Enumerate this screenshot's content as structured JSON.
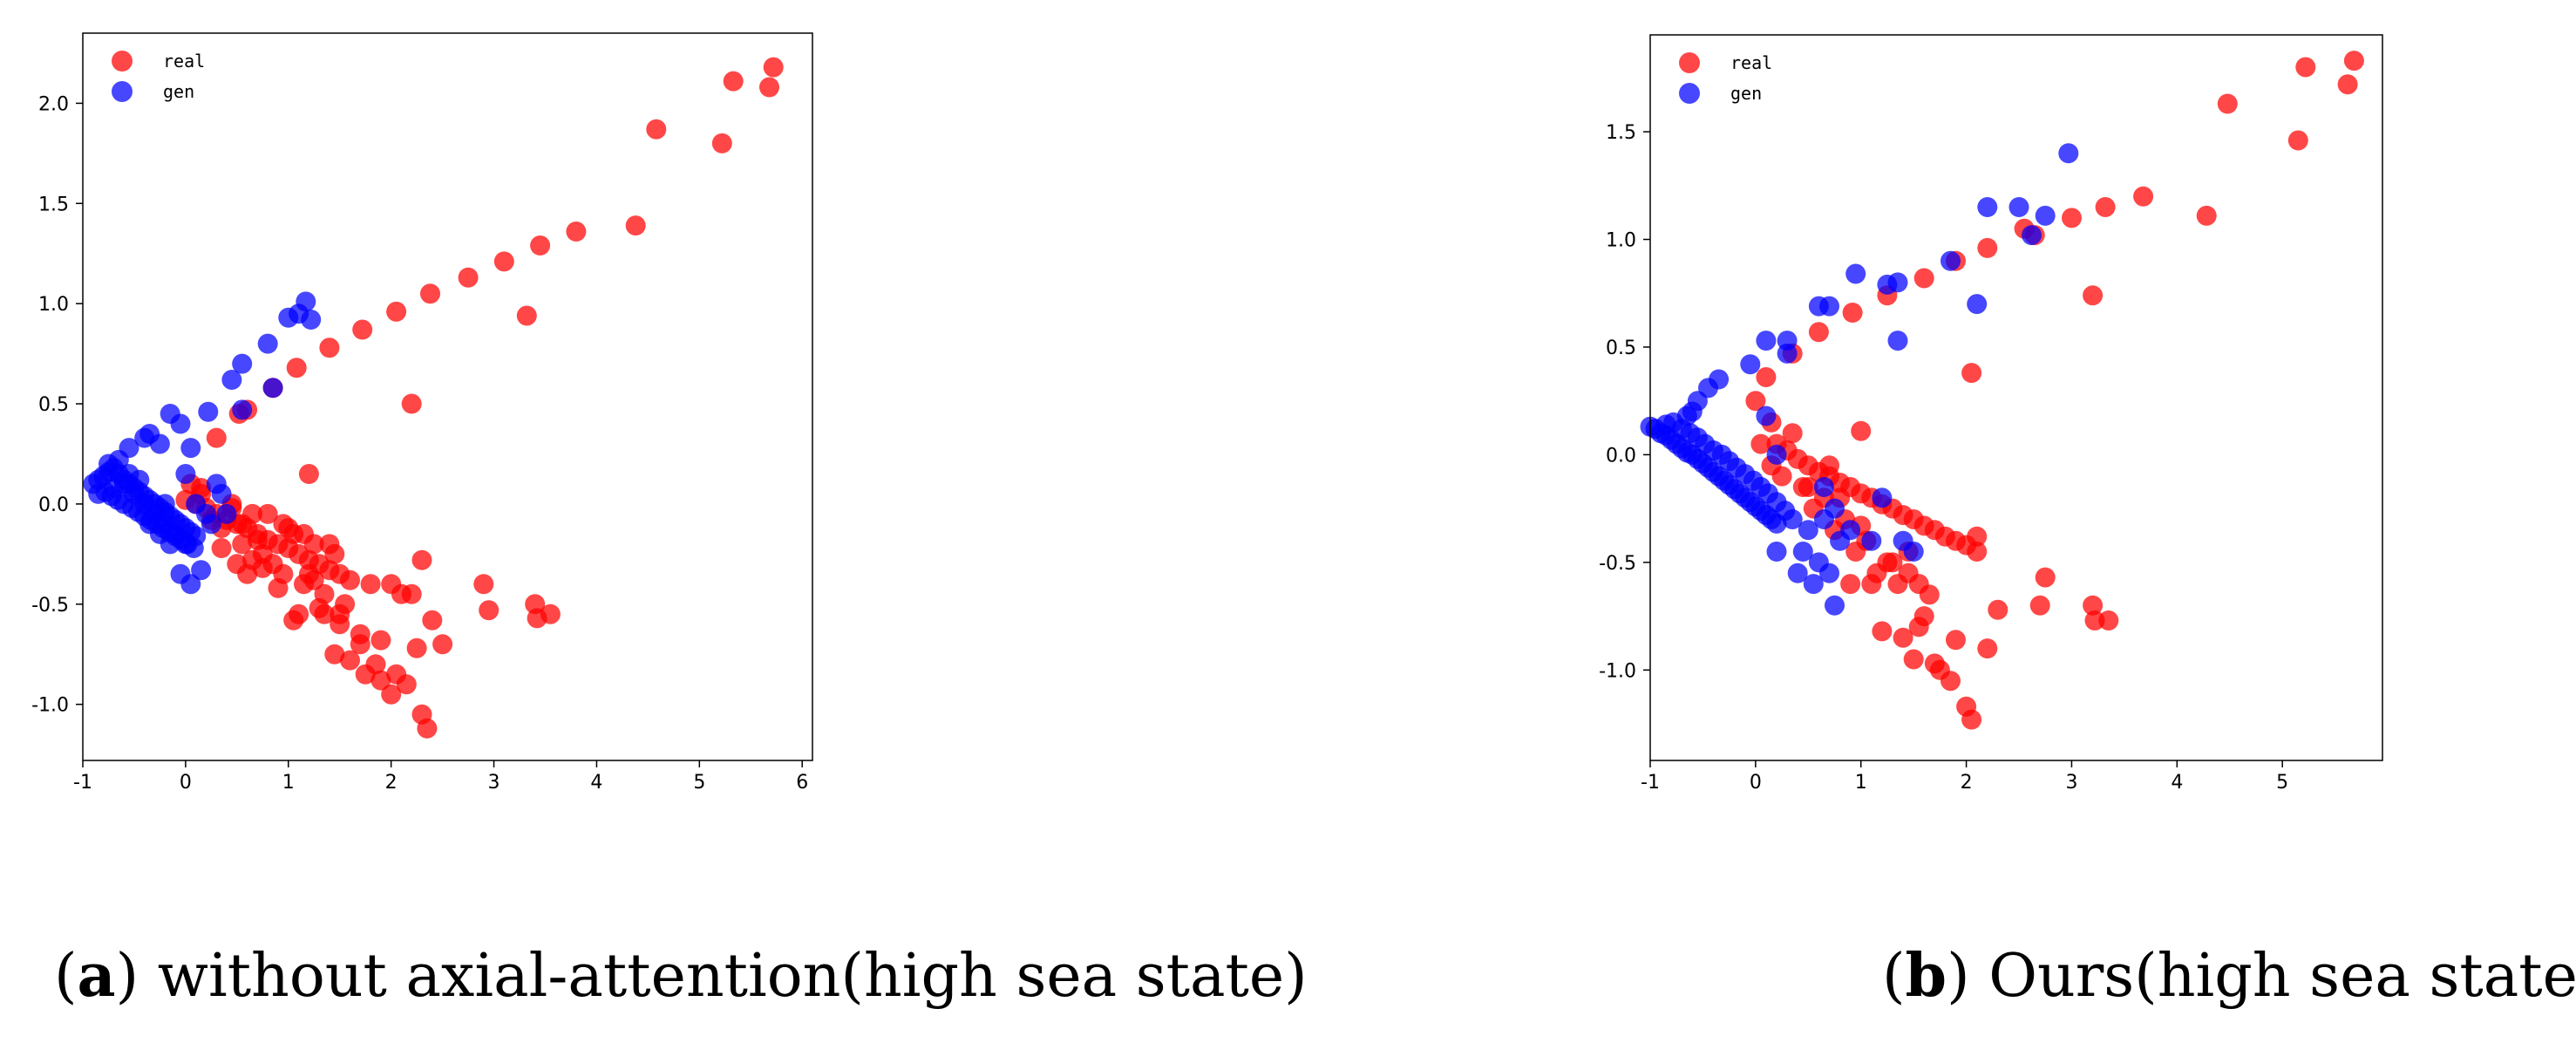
{
  "captions": [
    {
      "letter": "a",
      "text": ") without axial-attention(high sea state)"
    },
    {
      "letter": "b",
      "text": ") Ours(high sea state)"
    }
  ],
  "chart_data": [
    {
      "type": "scatter",
      "title": "",
      "xlabel": "",
      "ylabel": "",
      "xlim": [
        -1.0,
        6.1
      ],
      "ylim": [
        -1.28,
        2.35
      ],
      "xticks": [
        "-1",
        "0",
        "1",
        "2",
        "3",
        "4",
        "5",
        "6"
      ],
      "yticks": [
        "-1.0",
        "-0.5",
        "0.0",
        "0.5",
        "1.0",
        "1.5",
        "2.0"
      ],
      "grid": false,
      "legend_position": "top-left",
      "series": [
        {
          "name": "real",
          "color": "#ff0000",
          "x": [
            5.72,
            5.68,
            5.33,
            5.22,
            4.58,
            4.38,
            3.8,
            3.45,
            3.32,
            3.1,
            2.75,
            2.38,
            2.05,
            1.72,
            1.4,
            1.08,
            0.85,
            0.6,
            0.52,
            0.3,
            2.2,
            1.2,
            0.0,
            0.1,
            0.2,
            0.3,
            0.4,
            0.5,
            0.6,
            0.7,
            0.8,
            0.9,
            1.0,
            1.1,
            1.2,
            1.3,
            1.4,
            1.5,
            1.6,
            1.8,
            2.0,
            2.1,
            0.15,
            0.35,
            0.45,
            0.55,
            0.65,
            0.75,
            0.85,
            0.95,
            1.05,
            1.15,
            1.25,
            1.35,
            1.45,
            1.55,
            0.25,
            0.5,
            0.7,
            0.9,
            1.1,
            1.3,
            1.5,
            1.7,
            1.9,
            2.3,
            2.9,
            2.95,
            3.4,
            3.42,
            3.55,
            2.4,
            2.5,
            2.25,
            2.2,
            1.05,
            1.15,
            1.35,
            1.45,
            1.6,
            1.75,
            1.85,
            1.9,
            2.0,
            2.05,
            2.15,
            2.3,
            2.35,
            1.7,
            1.5,
            0.35,
            0.55,
            0.6,
            0.8,
            1.0,
            1.2,
            1.4,
            0.05,
            0.15,
            0.45,
            0.65,
            0.75,
            0.95,
            1.25
          ],
          "y": [
            2.18,
            2.08,
            2.11,
            1.8,
            1.87,
            1.39,
            1.36,
            1.29,
            0.94,
            1.21,
            1.13,
            1.05,
            0.96,
            0.87,
            0.78,
            0.68,
            0.58,
            0.47,
            0.45,
            0.33,
            0.5,
            0.15,
            0.02,
            0.0,
            -0.02,
            -0.05,
            -0.08,
            -0.1,
            -0.12,
            -0.15,
            -0.18,
            -0.2,
            -0.22,
            -0.25,
            -0.28,
            -0.3,
            -0.33,
            -0.35,
            -0.38,
            -0.4,
            -0.4,
            -0.45,
            0.05,
            -0.12,
            -0.02,
            -0.2,
            -0.05,
            -0.25,
            -0.3,
            -0.35,
            -0.15,
            -0.4,
            -0.2,
            -0.45,
            -0.25,
            -0.5,
            -0.08,
            -0.3,
            -0.18,
            -0.42,
            -0.55,
            -0.52,
            -0.55,
            -0.65,
            -0.68,
            -0.28,
            -0.4,
            -0.53,
            -0.5,
            -0.57,
            -0.55,
            -0.58,
            -0.7,
            -0.72,
            -0.45,
            -0.58,
            -0.15,
            -0.55,
            -0.75,
            -0.78,
            -0.85,
            -0.8,
            -0.88,
            -0.95,
            -0.85,
            -0.9,
            -1.05,
            -1.12,
            -0.7,
            -0.6,
            -0.22,
            -0.1,
            -0.35,
            -0.05,
            -0.12,
            -0.35,
            -0.2,
            0.1,
            0.08,
            0.0,
            -0.28,
            -0.32,
            -0.1,
            -0.38
          ]
        },
        {
          "name": "gen",
          "color": "#0000ff",
          "x": [
            1.17,
            1.22,
            1.0,
            1.1,
            0.8,
            0.55,
            0.85,
            0.45,
            0.55,
            0.22,
            -0.15,
            -0.35,
            -0.05,
            -0.25,
            -0.4,
            -0.55,
            0.05,
            0.3,
            0.0,
            -0.9,
            -0.85,
            -0.8,
            -0.75,
            -0.7,
            -0.65,
            -0.6,
            -0.55,
            -0.5,
            -0.45,
            -0.4,
            -0.35,
            -0.3,
            -0.25,
            -0.2,
            -0.15,
            -0.1,
            -0.05,
            0.0,
            0.05,
            0.1,
            -0.85,
            -0.78,
            -0.72,
            -0.66,
            -0.6,
            -0.52,
            -0.46,
            -0.4,
            -0.34,
            -0.28,
            -0.22,
            -0.16,
            -0.1,
            -0.04,
            0.02,
            0.08,
            -0.7,
            -0.6,
            -0.5,
            -0.4,
            -0.3,
            -0.2,
            -0.1,
            0.0,
            0.25,
            0.35,
            0.4,
            0.2,
            -0.05,
            0.05,
            -0.75,
            -0.65,
            -0.55,
            -0.45,
            -0.35,
            -0.25,
            -0.15,
            0.15,
            0.1,
            -0.2
          ],
          "y": [
            1.01,
            0.92,
            0.93,
            0.95,
            0.8,
            0.7,
            0.58,
            0.62,
            0.47,
            0.46,
            0.45,
            0.35,
            0.4,
            0.3,
            0.33,
            0.28,
            0.28,
            0.1,
            0.15,
            0.1,
            0.12,
            0.14,
            0.16,
            0.18,
            0.15,
            0.12,
            0.1,
            0.08,
            0.06,
            0.04,
            0.02,
            0.0,
            -0.02,
            -0.04,
            -0.06,
            -0.08,
            -0.1,
            -0.12,
            -0.14,
            -0.16,
            0.05,
            0.06,
            0.04,
            0.02,
            0.0,
            -0.02,
            -0.04,
            -0.06,
            -0.08,
            -0.1,
            -0.12,
            -0.14,
            -0.16,
            -0.18,
            -0.2,
            -0.22,
            0.08,
            0.1,
            0.05,
            0.0,
            -0.05,
            -0.1,
            -0.15,
            -0.2,
            -0.1,
            0.05,
            -0.05,
            -0.05,
            -0.35,
            -0.4,
            0.2,
            0.22,
            0.15,
            0.12,
            -0.1,
            -0.15,
            -0.2,
            -0.33,
            0.0,
            0.0
          ]
        }
      ]
    },
    {
      "type": "scatter",
      "title": "",
      "xlabel": "",
      "ylabel": "",
      "xlim": [
        -1.0,
        5.95
      ],
      "ylim": [
        -1.42,
        1.95
      ],
      "xticks": [
        "-1",
        "0",
        "1",
        "2",
        "3",
        "4",
        "5"
      ],
      "yticks": [
        "-1.0",
        "-0.5",
        "0.0",
        "0.5",
        "1.0",
        "1.5"
      ],
      "grid": false,
      "legend_position": "top-left",
      "series": [
        {
          "name": "real",
          "color": "#ff0000",
          "x": [
            5.68,
            5.22,
            5.62,
            5.15,
            4.48,
            4.28,
            3.68,
            3.32,
            3.0,
            2.65,
            2.55,
            2.2,
            1.9,
            1.6,
            1.25,
            0.92,
            0.6,
            0.35,
            0.1,
            0.0,
            2.05,
            1.0,
            3.2,
            0.2,
            0.3,
            0.4,
            0.5,
            0.6,
            0.7,
            0.8,
            0.9,
            1.0,
            1.1,
            1.2,
            1.3,
            1.4,
            1.5,
            1.6,
            1.7,
            1.8,
            1.9,
            2.0,
            2.1,
            0.25,
            0.45,
            0.55,
            0.65,
            0.75,
            0.85,
            0.95,
            1.05,
            1.15,
            1.25,
            1.35,
            1.45,
            1.55,
            1.65,
            2.75,
            2.7,
            3.2,
            3.22,
            3.35,
            2.3,
            2.2,
            1.9,
            1.2,
            1.4,
            1.5,
            1.6,
            1.55,
            1.7,
            1.85,
            2.0,
            2.05,
            1.75,
            1.1,
            1.3,
            0.9,
            1.0,
            0.15,
            0.35,
            0.05,
            0.15,
            0.5,
            0.7,
            0.8,
            1.45,
            2.1
          ],
          "y": [
            1.83,
            1.8,
            1.72,
            1.46,
            1.63,
            1.11,
            1.2,
            1.15,
            1.1,
            1.02,
            1.05,
            0.96,
            0.9,
            0.82,
            0.74,
            0.66,
            0.57,
            0.47,
            0.36,
            0.25,
            0.38,
            0.11,
            0.74,
            0.05,
            0.02,
            -0.02,
            -0.05,
            -0.08,
            -0.1,
            -0.13,
            -0.15,
            -0.18,
            -0.2,
            -0.23,
            -0.25,
            -0.28,
            -0.3,
            -0.33,
            -0.35,
            -0.38,
            -0.4,
            -0.42,
            -0.45,
            -0.1,
            -0.15,
            -0.25,
            -0.2,
            -0.35,
            -0.3,
            -0.45,
            -0.4,
            -0.55,
            -0.5,
            -0.6,
            -0.55,
            -0.6,
            -0.65,
            -0.57,
            -0.7,
            -0.7,
            -0.77,
            -0.77,
            -0.72,
            -0.9,
            -0.86,
            -0.82,
            -0.85,
            -0.95,
            -0.75,
            -0.8,
            -0.97,
            -1.05,
            -1.17,
            -1.23,
            -1.0,
            -0.6,
            -0.5,
            -0.6,
            -0.33,
            0.15,
            0.1,
            0.05,
            -0.05,
            -0.15,
            -0.05,
            -0.2,
            -0.45,
            -0.38
          ]
        },
        {
          "name": "gen",
          "color": "#0000ff",
          "x": [
            2.97,
            2.2,
            2.5,
            2.75,
            2.62,
            2.1,
            1.85,
            1.35,
            1.25,
            1.35,
            0.95,
            0.6,
            0.7,
            0.3,
            0.1,
            0.3,
            -0.05,
            -0.35,
            -0.45,
            -0.55,
            -0.6,
            -0.65,
            0.1,
            -1.0,
            -0.95,
            -0.9,
            -0.85,
            -0.8,
            -0.75,
            -0.7,
            -0.65,
            -0.6,
            -0.55,
            -0.5,
            -0.45,
            -0.4,
            -0.35,
            -0.3,
            -0.25,
            -0.2,
            -0.15,
            -0.1,
            -0.05,
            0.0,
            0.05,
            0.1,
            0.15,
            0.2,
            -0.85,
            -0.78,
            -0.7,
            -0.62,
            -0.55,
            -0.48,
            -0.4,
            -0.32,
            -0.25,
            -0.18,
            -0.1,
            -0.02,
            0.05,
            0.12,
            0.2,
            0.28,
            0.35,
            0.5,
            0.45,
            0.6,
            0.7,
            0.8,
            0.2,
            0.4,
            0.55,
            0.75,
            0.65,
            0.9,
            1.1,
            1.4,
            1.5,
            1.2,
            0.75,
            0.65,
            0.2
          ],
          "y": [
            1.4,
            1.15,
            1.15,
            1.11,
            1.02,
            0.7,
            0.9,
            0.8,
            0.79,
            0.53,
            0.84,
            0.69,
            0.69,
            0.53,
            0.53,
            0.47,
            0.42,
            0.35,
            0.31,
            0.25,
            0.2,
            0.18,
            0.18,
            0.13,
            0.12,
            0.1,
            0.09,
            0.07,
            0.05,
            0.03,
            0.01,
            0.0,
            -0.02,
            -0.04,
            -0.06,
            -0.08,
            -0.1,
            -0.12,
            -0.14,
            -0.16,
            -0.18,
            -0.2,
            -0.22,
            -0.24,
            -0.26,
            -0.28,
            -0.3,
            -0.32,
            0.14,
            0.15,
            0.12,
            0.1,
            0.08,
            0.05,
            0.02,
            0.0,
            -0.03,
            -0.06,
            -0.09,
            -0.12,
            -0.15,
            -0.18,
            -0.22,
            -0.26,
            -0.3,
            -0.35,
            -0.45,
            -0.5,
            -0.55,
            -0.4,
            -0.45,
            -0.55,
            -0.6,
            -0.7,
            -0.3,
            -0.35,
            -0.4,
            -0.4,
            -0.45,
            -0.2,
            -0.25,
            -0.15,
            0.0
          ]
        }
      ]
    }
  ]
}
